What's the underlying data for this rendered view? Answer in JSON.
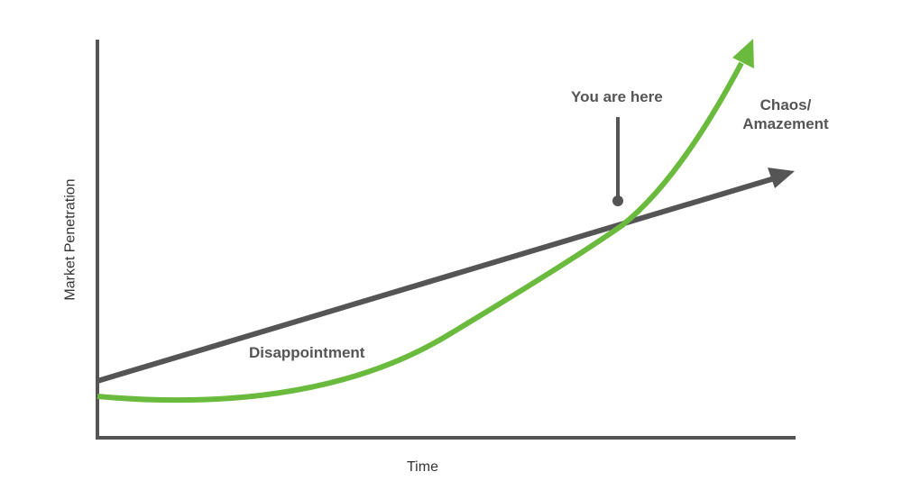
{
  "axes": {
    "x_label": "Time",
    "y_label": "Market Penetration"
  },
  "annotations": {
    "you_are_here": "You are here",
    "disappointment": "Disappointment",
    "chaos_line1": "Chaos/",
    "chaos_line2": "Amazement"
  },
  "series": {
    "linear": {
      "color": "#555555"
    },
    "exponential": {
      "color": "#6abb3d"
    }
  }
}
